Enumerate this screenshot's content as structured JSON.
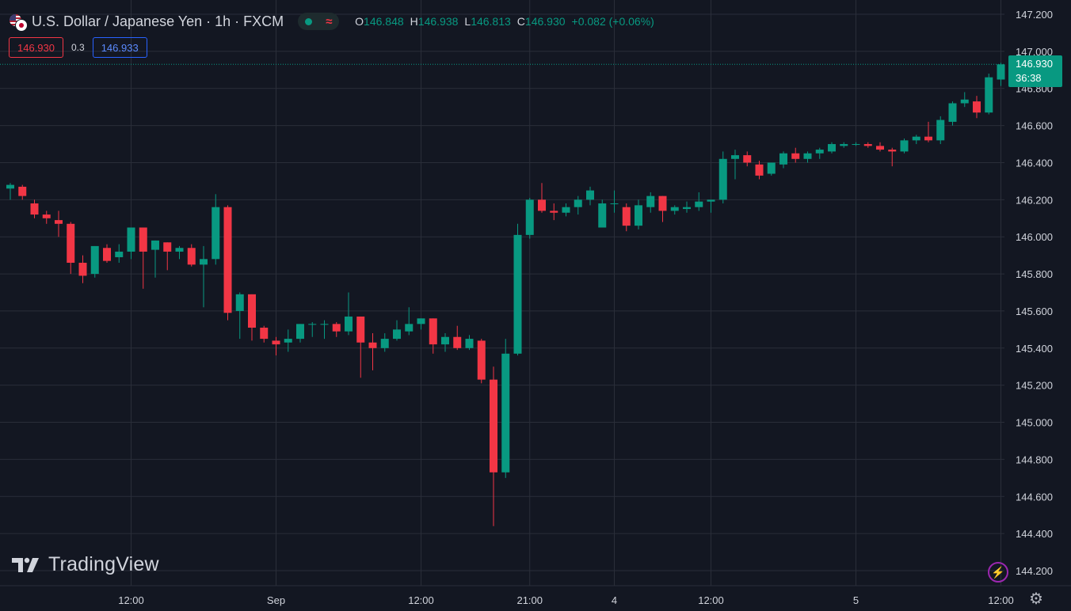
{
  "header": {
    "symbol_title": "U.S. Dollar / Japanese Yen · 1h · FXCM",
    "status_symbol": "≈",
    "ohlc": {
      "o_label": "O",
      "o_value": "146.848",
      "h_label": "H",
      "h_value": "146.938",
      "l_label": "L",
      "l_value": "146.813",
      "c_label": "C",
      "c_value": "146.930",
      "change": "+0.082 (+0.06%)"
    }
  },
  "quote": {
    "sell": "146.930",
    "spread": "0.3",
    "buy": "146.933"
  },
  "branding": {
    "name": "TradingView"
  },
  "last_price": {
    "price": "146.930",
    "countdown": "36:38"
  },
  "colors": {
    "background": "#131722",
    "grid": "#2a2e39",
    "up": "#089981",
    "down": "#f23645",
    "text": "#d1d4dc",
    "buy": "#2962ff"
  },
  "icons": {
    "alert": "lightning-icon",
    "settings": "gear-icon",
    "flags": "usd-jpy-flags-icon"
  },
  "chart_data": {
    "type": "candlestick",
    "y_axis": {
      "side": "right",
      "range": [
        144.15,
        147.26
      ],
      "ticks": [
        147.2,
        147.0,
        146.8,
        146.6,
        146.4,
        146.2,
        146.0,
        145.8,
        145.6,
        145.4,
        145.2,
        145.0,
        144.8,
        144.6,
        144.4,
        144.2
      ],
      "tick_labels": [
        "147.200",
        "147.000",
        "146.800",
        "146.600",
        "146.400",
        "146.200",
        "146.000",
        "145.800",
        "145.600",
        "145.400",
        "145.200",
        "145.000",
        "144.800",
        "144.600",
        "144.400",
        "144.200"
      ]
    },
    "x_axis": {
      "tick_labels": [
        "12:00",
        "Sep",
        "12:00",
        "21:00",
        "4",
        "12:00",
        "5",
        "12:00"
      ],
      "tick_bar_index": [
        10,
        22,
        34,
        43,
        50,
        58,
        70,
        82
      ]
    },
    "grid": true,
    "last_price_line": 146.93,
    "candles": [
      {
        "o": 146.26,
        "h": 146.29,
        "l": 146.2,
        "c": 146.28
      },
      {
        "o": 146.27,
        "h": 146.28,
        "l": 146.2,
        "c": 146.22
      },
      {
        "o": 146.18,
        "h": 146.2,
        "l": 146.1,
        "c": 146.12
      },
      {
        "o": 146.12,
        "h": 146.14,
        "l": 146.07,
        "c": 146.1
      },
      {
        "o": 146.09,
        "h": 146.14,
        "l": 146.0,
        "c": 146.07
      },
      {
        "o": 146.07,
        "h": 146.08,
        "l": 145.8,
        "c": 145.86
      },
      {
        "o": 145.86,
        "h": 145.9,
        "l": 145.75,
        "c": 145.79
      },
      {
        "o": 145.8,
        "h": 145.95,
        "l": 145.78,
        "c": 145.95
      },
      {
        "o": 145.94,
        "h": 145.96,
        "l": 145.86,
        "c": 145.87
      },
      {
        "o": 145.89,
        "h": 145.96,
        "l": 145.86,
        "c": 145.92
      },
      {
        "o": 145.92,
        "h": 146.05,
        "l": 145.88,
        "c": 146.05
      },
      {
        "o": 146.05,
        "h": 146.05,
        "l": 145.72,
        "c": 145.92
      },
      {
        "o": 145.93,
        "h": 145.98,
        "l": 145.78,
        "c": 145.98
      },
      {
        "o": 145.97,
        "h": 145.97,
        "l": 145.82,
        "c": 145.92
      },
      {
        "o": 145.92,
        "h": 145.95,
        "l": 145.88,
        "c": 145.94
      },
      {
        "o": 145.94,
        "h": 145.96,
        "l": 145.84,
        "c": 145.85
      },
      {
        "o": 145.85,
        "h": 145.95,
        "l": 145.62,
        "c": 145.88
      },
      {
        "o": 145.88,
        "h": 146.23,
        "l": 145.85,
        "c": 146.16
      },
      {
        "o": 146.16,
        "h": 146.17,
        "l": 145.55,
        "c": 145.59
      },
      {
        "o": 145.6,
        "h": 145.7,
        "l": 145.45,
        "c": 145.69
      },
      {
        "o": 145.69,
        "h": 145.69,
        "l": 145.44,
        "c": 145.51
      },
      {
        "o": 145.51,
        "h": 145.52,
        "l": 145.43,
        "c": 145.45
      },
      {
        "o": 145.44,
        "h": 145.46,
        "l": 145.36,
        "c": 145.42
      },
      {
        "o": 145.43,
        "h": 145.5,
        "l": 145.38,
        "c": 145.45
      },
      {
        "o": 145.45,
        "h": 145.53,
        "l": 145.43,
        "c": 145.53
      },
      {
        "o": 145.53,
        "h": 145.54,
        "l": 145.46,
        "c": 145.53
      },
      {
        "o": 145.53,
        "h": 145.55,
        "l": 145.45,
        "c": 145.53
      },
      {
        "o": 145.53,
        "h": 145.54,
        "l": 145.46,
        "c": 145.49
      },
      {
        "o": 145.49,
        "h": 145.7,
        "l": 145.47,
        "c": 145.57
      },
      {
        "o": 145.57,
        "h": 145.57,
        "l": 145.24,
        "c": 145.43
      },
      {
        "o": 145.43,
        "h": 145.48,
        "l": 145.28,
        "c": 145.4
      },
      {
        "o": 145.4,
        "h": 145.48,
        "l": 145.38,
        "c": 145.45
      },
      {
        "o": 145.45,
        "h": 145.55,
        "l": 145.44,
        "c": 145.5
      },
      {
        "o": 145.49,
        "h": 145.62,
        "l": 145.47,
        "c": 145.53
      },
      {
        "o": 145.53,
        "h": 145.56,
        "l": 145.5,
        "c": 145.56
      },
      {
        "o": 145.56,
        "h": 145.56,
        "l": 145.37,
        "c": 145.42
      },
      {
        "o": 145.42,
        "h": 145.48,
        "l": 145.38,
        "c": 145.46
      },
      {
        "o": 145.46,
        "h": 145.52,
        "l": 145.39,
        "c": 145.4
      },
      {
        "o": 145.4,
        "h": 145.47,
        "l": 145.39,
        "c": 145.45
      },
      {
        "o": 145.44,
        "h": 145.45,
        "l": 145.21,
        "c": 145.23
      },
      {
        "o": 145.23,
        "h": 145.3,
        "l": 144.44,
        "c": 144.73
      },
      {
        "o": 144.73,
        "h": 145.45,
        "l": 144.7,
        "c": 145.37
      },
      {
        "o": 145.37,
        "h": 146.07,
        "l": 145.36,
        "c": 146.01
      },
      {
        "o": 146.01,
        "h": 146.21,
        "l": 145.99,
        "c": 146.2
      },
      {
        "o": 146.2,
        "h": 146.29,
        "l": 146.13,
        "c": 146.14
      },
      {
        "o": 146.14,
        "h": 146.18,
        "l": 146.09,
        "c": 146.13
      },
      {
        "o": 146.13,
        "h": 146.18,
        "l": 146.11,
        "c": 146.16
      },
      {
        "o": 146.16,
        "h": 146.22,
        "l": 146.12,
        "c": 146.2
      },
      {
        "o": 146.2,
        "h": 146.27,
        "l": 146.17,
        "c": 146.25
      },
      {
        "o": 146.05,
        "h": 146.2,
        "l": 146.05,
        "c": 146.18
      },
      {
        "o": 146.18,
        "h": 146.25,
        "l": 146.13,
        "c": 146.18
      },
      {
        "o": 146.16,
        "h": 146.18,
        "l": 146.03,
        "c": 146.06
      },
      {
        "o": 146.06,
        "h": 146.2,
        "l": 146.04,
        "c": 146.17
      },
      {
        "o": 146.16,
        "h": 146.24,
        "l": 146.13,
        "c": 146.22
      },
      {
        "o": 146.22,
        "h": 146.22,
        "l": 146.08,
        "c": 146.14
      },
      {
        "o": 146.14,
        "h": 146.17,
        "l": 146.12,
        "c": 146.16
      },
      {
        "o": 146.15,
        "h": 146.19,
        "l": 146.13,
        "c": 146.16
      },
      {
        "o": 146.16,
        "h": 146.24,
        "l": 146.14,
        "c": 146.19
      },
      {
        "o": 146.19,
        "h": 146.2,
        "l": 146.13,
        "c": 146.2
      },
      {
        "o": 146.2,
        "h": 146.46,
        "l": 146.18,
        "c": 146.42
      },
      {
        "o": 146.42,
        "h": 146.47,
        "l": 146.31,
        "c": 146.44
      },
      {
        "o": 146.44,
        "h": 146.46,
        "l": 146.38,
        "c": 146.4
      },
      {
        "o": 146.39,
        "h": 146.41,
        "l": 146.31,
        "c": 146.33
      },
      {
        "o": 146.34,
        "h": 146.4,
        "l": 146.33,
        "c": 146.4
      },
      {
        "o": 146.39,
        "h": 146.46,
        "l": 146.37,
        "c": 146.45
      },
      {
        "o": 146.45,
        "h": 146.48,
        "l": 146.4,
        "c": 146.42
      },
      {
        "o": 146.42,
        "h": 146.46,
        "l": 146.4,
        "c": 146.45
      },
      {
        "o": 146.45,
        "h": 146.48,
        "l": 146.42,
        "c": 146.47
      },
      {
        "o": 146.46,
        "h": 146.51,
        "l": 146.45,
        "c": 146.5
      },
      {
        "o": 146.49,
        "h": 146.51,
        "l": 146.48,
        "c": 146.5
      },
      {
        "o": 146.5,
        "h": 146.51,
        "l": 146.49,
        "c": 146.5
      },
      {
        "o": 146.5,
        "h": 146.51,
        "l": 146.48,
        "c": 146.49
      },
      {
        "o": 146.49,
        "h": 146.51,
        "l": 146.46,
        "c": 146.47
      },
      {
        "o": 146.47,
        "h": 146.48,
        "l": 146.38,
        "c": 146.46
      },
      {
        "o": 146.46,
        "h": 146.53,
        "l": 146.45,
        "c": 146.52
      },
      {
        "o": 146.52,
        "h": 146.55,
        "l": 146.5,
        "c": 146.54
      },
      {
        "o": 146.54,
        "h": 146.62,
        "l": 146.51,
        "c": 146.52
      },
      {
        "o": 146.52,
        "h": 146.65,
        "l": 146.5,
        "c": 146.63
      },
      {
        "o": 146.62,
        "h": 146.73,
        "l": 146.6,
        "c": 146.72
      },
      {
        "o": 146.72,
        "h": 146.78,
        "l": 146.7,
        "c": 146.74
      },
      {
        "o": 146.73,
        "h": 146.76,
        "l": 146.64,
        "c": 146.67
      },
      {
        "o": 146.67,
        "h": 146.88,
        "l": 146.66,
        "c": 146.86
      },
      {
        "o": 146.848,
        "h": 146.938,
        "l": 146.813,
        "c": 146.93
      }
    ]
  }
}
